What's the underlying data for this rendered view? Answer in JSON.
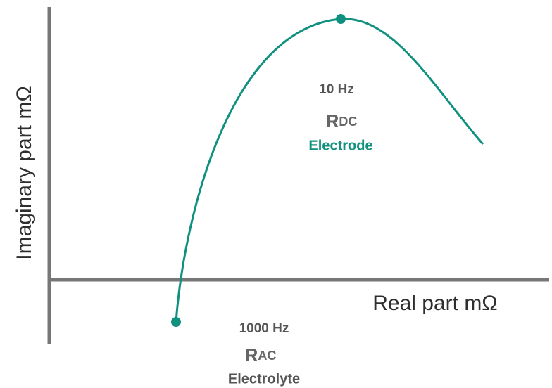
{
  "axes": {
    "y_label": "Imaginary part mΩ",
    "x_label": "Real part mΩ"
  },
  "points": [
    {
      "frequency": "10 Hz",
      "symbol": {
        "letter": "R",
        "subscript": "DC"
      },
      "name": "Electrode"
    },
    {
      "frequency": "1000 Hz",
      "symbol": {
        "letter": "R",
        "subscript": "AC"
      },
      "name": "Electrolyte"
    }
  ]
}
